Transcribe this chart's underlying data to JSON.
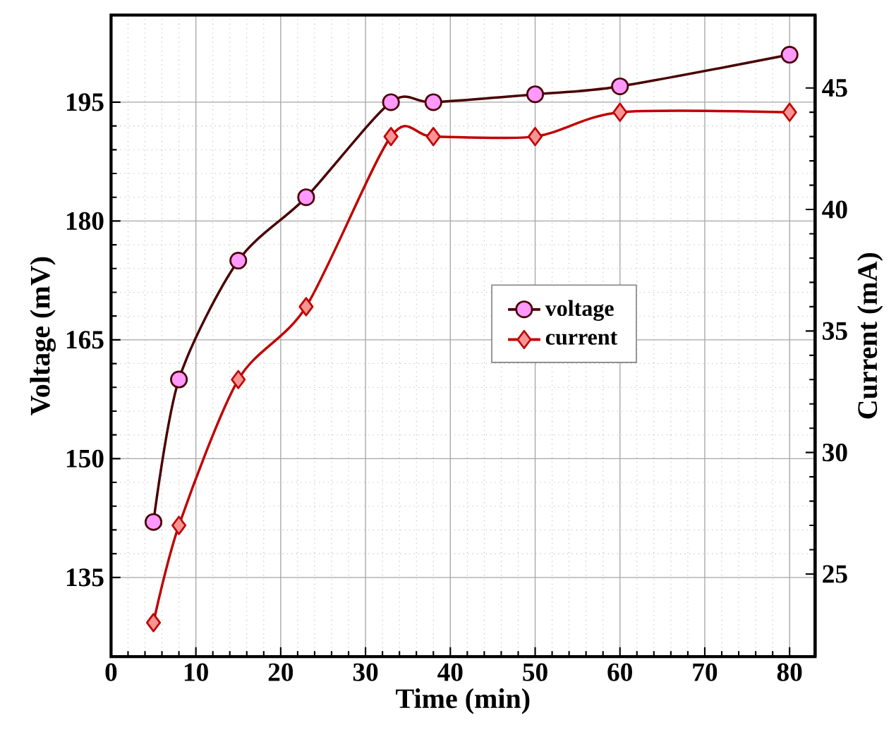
{
  "chart_data": {
    "type": "line",
    "xlabel": "Time (min)",
    "ylabel": "Voltage (mV)",
    "y2label": "Current (mA)",
    "x": [
      5,
      8,
      15,
      23,
      33,
      38,
      50,
      60,
      80
    ],
    "series": [
      {
        "name": "voltage",
        "color": "#4a0000",
        "marker": "circle",
        "values": [
          142,
          160,
          175,
          183,
          195,
          195,
          196,
          197,
          201
        ]
      },
      {
        "name": "current",
        "color": "#c00000",
        "marker": "diamond",
        "axis": "y2",
        "values": [
          23,
          27,
          33,
          36,
          43,
          43,
          43,
          44,
          44
        ]
      }
    ],
    "xlim": [
      0,
      83
    ],
    "xticks": [
      0,
      10,
      20,
      30,
      40,
      50,
      60,
      70,
      80
    ],
    "ylim": [
      125,
      206
    ],
    "yticks": [
      135,
      150,
      165,
      180,
      195
    ],
    "y2lim": [
      21.6,
      48
    ],
    "y2ticks": [
      25,
      30,
      35,
      40,
      45
    ],
    "grid": true,
    "legend": "right"
  }
}
